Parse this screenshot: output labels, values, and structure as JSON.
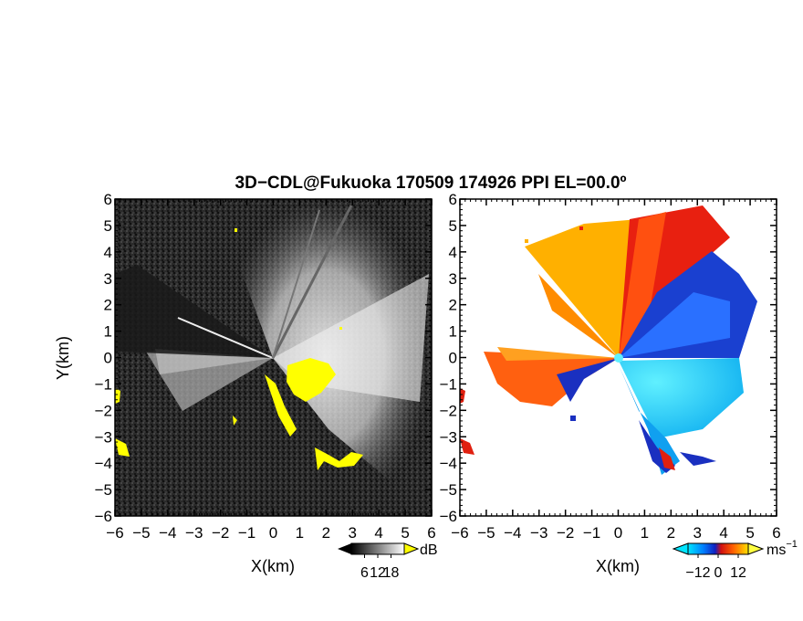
{
  "chart_data": [
    {
      "type": "heatmap",
      "panel": "left",
      "title": "3D−CDL@Fukuoka 170509 174926 PPI EL=00.0º",
      "xlabel": "X(km)",
      "ylabel": "Y(km)",
      "xlim": [
        -6,
        6
      ],
      "ylim": [
        -6,
        6
      ],
      "x_ticks": [
        "−6",
        "−5",
        "−4",
        "−3",
        "−2",
        "−1",
        "0",
        "1",
        "2",
        "3",
        "4",
        "5",
        "6"
      ],
      "y_ticks": [
        "6",
        "5",
        "4",
        "3",
        "2",
        "1",
        "0",
        "−1",
        "−2",
        "−3",
        "−4",
        "−5",
        "−6"
      ],
      "colorbar": {
        "unit": "dB",
        "ticks": [
          "6",
          "12",
          "18"
        ],
        "range": [
          0,
          24
        ],
        "colors": [
          "#000000",
          "#ffffff"
        ],
        "overflow_color": "#ffff00"
      },
      "background_color": "#222222",
      "highlight_color": "#ffff00"
    },
    {
      "type": "heatmap",
      "panel": "right",
      "xlabel": "X(km)",
      "ylabel": "",
      "xlim": [
        -6,
        6
      ],
      "ylim": [
        -6,
        6
      ],
      "x_ticks": [
        "−6",
        "−5",
        "−4",
        "−3",
        "−2",
        "−1",
        "0",
        "1",
        "2",
        "3",
        "4",
        "5",
        "6"
      ],
      "y_ticks": [
        "6",
        "5",
        "4",
        "3",
        "2",
        "1",
        "0",
        "−1",
        "−2",
        "−3",
        "−4",
        "−5",
        "−6"
      ],
      "colorbar": {
        "unit": "ms",
        "unit_exponent": "−1",
        "ticks": [
          "−12",
          "0",
          "12"
        ],
        "range": [
          -18,
          18
        ],
        "colors": [
          "#00e5ff",
          "#0060ff",
          "#1020c0",
          "#d01010",
          "#ff5000",
          "#ffc000",
          "#ffff40"
        ]
      },
      "background_color": "#ffffff"
    }
  ]
}
